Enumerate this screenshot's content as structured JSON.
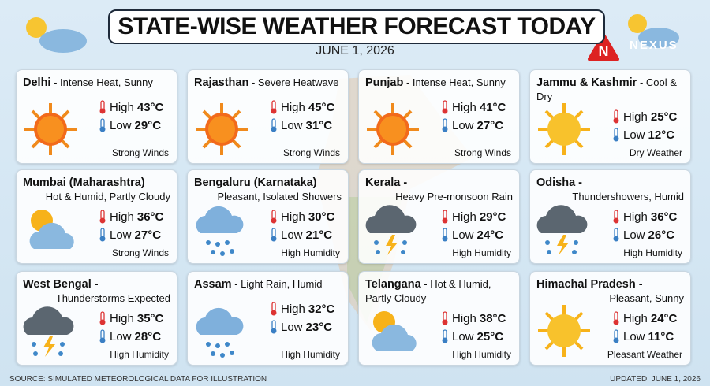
{
  "header": {
    "title": "STATE-WISE WEATHER FORECAST TODAY",
    "date": "JUNE 1, 2026"
  },
  "logo": {
    "letter": "N",
    "name": "NEXUS"
  },
  "labels": {
    "high": "High",
    "low": "Low"
  },
  "cards": [
    {
      "name": "Delhi",
      "condition": "- Intense Heat, Sunny",
      "high": "43°C",
      "low": "29°C",
      "note": "Strong Winds"
    },
    {
      "name": "Rajasthan",
      "condition": "- Severe Heatwave",
      "high": "45°C",
      "low": "31°C",
      "note": "Strong Winds"
    },
    {
      "name": "Punjab",
      "condition": "- Intense Heat, Sunny",
      "high": "41°C",
      "low": "27°C",
      "note": "Strong Winds"
    },
    {
      "name": "Jammu & Kashmir",
      "condition": "- Cool & Dry",
      "high": "25°C",
      "low": "12°C",
      "note": "Dry Weather"
    },
    {
      "name": "Mumbai (Maharashtra)",
      "condition": "Hot & Humid, Partly Cloudy",
      "high": "36°C",
      "low": "27°C",
      "note": "Strong Winds"
    },
    {
      "name": "Bengaluru (Karnataka)",
      "condition": "Pleasant, Isolated Showers",
      "high": "30°C",
      "low": "21°C",
      "note": "High Humidity"
    },
    {
      "name": "Kerala -",
      "condition": "Heavy Pre-monsoon Rain",
      "high": "29°C",
      "low": "24°C",
      "note": "High Humidity"
    },
    {
      "name": "Odisha -",
      "condition": "Thundershowers, Humid",
      "high": "36°C",
      "low": "26°C",
      "note": "High Humidity"
    },
    {
      "name": "West Bengal -",
      "condition": "Thunderstorms Expected",
      "high": "35°C",
      "low": "28°C",
      "note": "High Humidity"
    },
    {
      "name": "Assam",
      "condition": "- Light Rain, Humid",
      "high": "32°C",
      "low": "23°C",
      "note": "High Humidity"
    },
    {
      "name": "Telangana",
      "condition": "- Hot & Humid, Partly Cloudy",
      "high": "38°C",
      "low": "25°C",
      "note": "High Humidity"
    },
    {
      "name": "Himachal Pradesh -",
      "condition": "Pleasant, Sunny",
      "high": "24°C",
      "low": "11°C",
      "note": "Pleasant Weather"
    }
  ],
  "footer": {
    "source": "SOURCE: SIMULATED METEOROLOGICAL DATA FOR ILLUSTRATION",
    "updated": "UPDATED: JUNE 1, 2026"
  }
}
